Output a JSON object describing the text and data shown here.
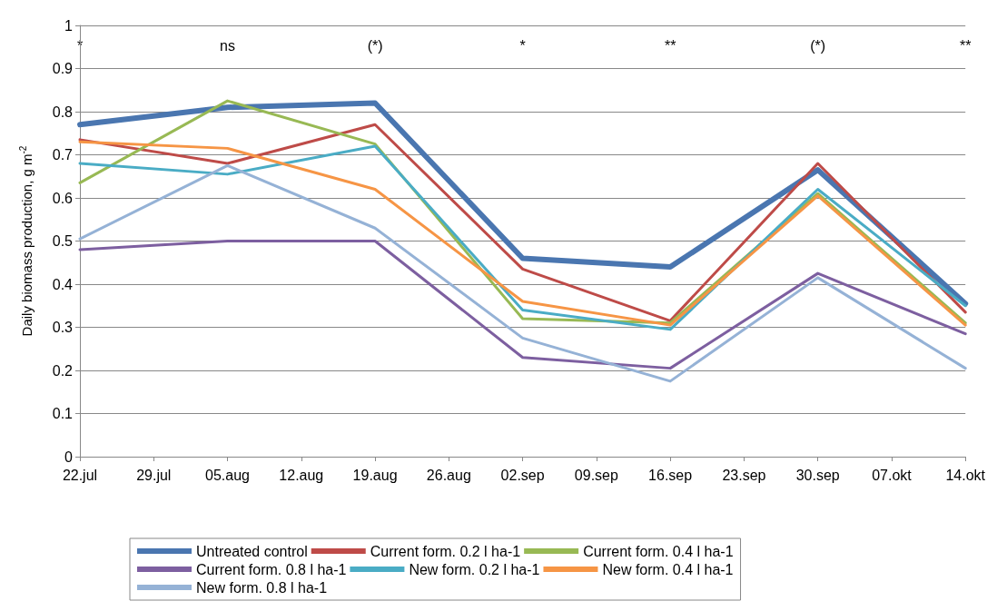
{
  "chart_data": {
    "type": "line",
    "ylabel": "Daily biomass production, g m$^{-2}$",
    "categories": [
      "22.jul",
      "29.jul",
      "05.aug",
      "12.aug",
      "19.aug",
      "26.aug",
      "02.sep",
      "09.sep",
      "16.sep",
      "23.sep",
      "30.sep",
      "07.okt",
      "14.okt"
    ],
    "ylim": [
      0,
      1
    ],
    "yticks": [
      0,
      0.1,
      0.2,
      0.3,
      0.4,
      0.5,
      0.6,
      0.7,
      0.8,
      0.9,
      1
    ],
    "grid": "y",
    "legend": "bottom",
    "marker": "none",
    "line_style": "solid",
    "series": [
      {
        "name": "Untreated control",
        "color": "#4a76b0",
        "x": [
          "22.jul",
          "05.aug",
          "19.aug",
          "02.sep",
          "16.sep",
          "30.sep",
          "14.okt"
        ],
        "values": [
          0.77,
          0.81,
          0.82,
          0.46,
          0.44,
          0.665,
          0.355
        ]
      },
      {
        "name": "Current form. 0.2 l ha-1",
        "color": "#be4b48",
        "x": [
          "22.jul",
          "05.aug",
          "19.aug",
          "02.sep",
          "16.sep",
          "30.sep",
          "14.okt"
        ],
        "values": [
          0.735,
          0.68,
          0.77,
          0.435,
          0.315,
          0.68,
          0.335
        ]
      },
      {
        "name": "Current form. 0.4 l ha-1",
        "color": "#98b954",
        "x": [
          "22.jul",
          "05.aug",
          "19.aug",
          "02.sep",
          "16.sep",
          "30.sep",
          "14.okt"
        ],
        "values": [
          0.635,
          0.825,
          0.725,
          0.32,
          0.31,
          0.61,
          0.31
        ]
      },
      {
        "name": "Current form. 0.8 l ha-1",
        "color": "#7d5fa0",
        "x": [
          "22.jul",
          "05.aug",
          "19.aug",
          "02.sep",
          "16.sep",
          "30.sep",
          "14.okt"
        ],
        "values": [
          0.48,
          0.5,
          0.5,
          0.23,
          0.205,
          0.425,
          0.285
        ]
      },
      {
        "name": "New form. 0.2 l ha-1",
        "color": "#4aacc5",
        "x": [
          "22.jul",
          "05.aug",
          "19.aug",
          "02.sep",
          "16.sep",
          "30.sep",
          "14.okt"
        ],
        "values": [
          0.68,
          0.655,
          0.72,
          0.34,
          0.295,
          0.62,
          0.35
        ]
      },
      {
        "name": "New form. 0.4 l ha-1",
        "color": "#f69545",
        "x": [
          "22.jul",
          "05.aug",
          "19.aug",
          "02.sep",
          "16.sep",
          "30.sep",
          "14.okt"
        ],
        "values": [
          0.73,
          0.715,
          0.62,
          0.36,
          0.305,
          0.605,
          0.305
        ]
      },
      {
        "name": "New form. 0.8 l ha-1",
        "color": "#95b2d6",
        "x": [
          "22.jul",
          "05.aug",
          "19.aug",
          "02.sep",
          "16.sep",
          "30.sep",
          "14.okt"
        ],
        "values": [
          0.505,
          0.675,
          0.53,
          0.275,
          0.175,
          0.415,
          0.205
        ]
      }
    ],
    "annotations": [
      "*",
      "ns",
      "(*)",
      "*",
      "**",
      "(*)",
      "**"
    ]
  }
}
